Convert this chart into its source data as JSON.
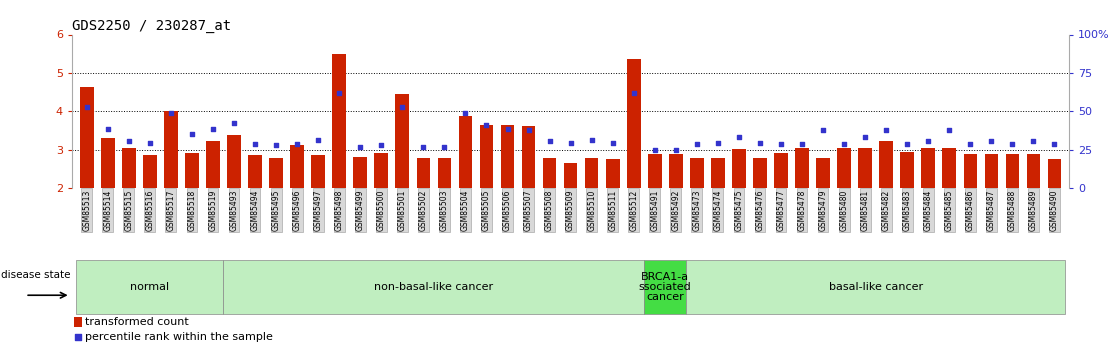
{
  "title": "GDS2250 / 230287_at",
  "samples": [
    "GSM85513",
    "GSM85514",
    "GSM85515",
    "GSM85516",
    "GSM85517",
    "GSM85518",
    "GSM85519",
    "GSM85493",
    "GSM85494",
    "GSM85495",
    "GSM85496",
    "GSM85497",
    "GSM85498",
    "GSM85499",
    "GSM85500",
    "GSM85501",
    "GSM85502",
    "GSM85503",
    "GSM85504",
    "GSM85505",
    "GSM85506",
    "GSM85507",
    "GSM85508",
    "GSM85509",
    "GSM85510",
    "GSM85511",
    "GSM85512",
    "GSM85491",
    "GSM85492",
    "GSM85473",
    "GSM85474",
    "GSM85475",
    "GSM85476",
    "GSM85477",
    "GSM85478",
    "GSM85479",
    "GSM85480",
    "GSM85481",
    "GSM85482",
    "GSM85483",
    "GSM85484",
    "GSM85485",
    "GSM85486",
    "GSM85487",
    "GSM85488",
    "GSM85489",
    "GSM85490"
  ],
  "bar_values": [
    4.62,
    3.3,
    3.05,
    2.85,
    4.0,
    2.9,
    3.22,
    3.38,
    2.87,
    2.78,
    3.13,
    2.87,
    5.48,
    2.82,
    2.92,
    4.45,
    2.78,
    2.78,
    3.88,
    3.65,
    3.65,
    3.62,
    2.78,
    2.65,
    2.78,
    2.75,
    5.35,
    2.88,
    2.88,
    2.78,
    2.78,
    3.02,
    2.78,
    2.92,
    3.05,
    2.78,
    3.05,
    3.05,
    3.22,
    2.95,
    3.05,
    3.05,
    2.88,
    2.88,
    2.88,
    2.88,
    2.75
  ],
  "blue_values": [
    4.1,
    3.55,
    3.22,
    3.18,
    3.95,
    3.42,
    3.55,
    3.7,
    3.15,
    3.12,
    3.15,
    3.25,
    4.48,
    3.08,
    3.12,
    4.12,
    3.08,
    3.08,
    3.95,
    3.65,
    3.55,
    3.52,
    3.22,
    3.18,
    3.25,
    3.18,
    4.48,
    2.98,
    2.98,
    3.15,
    3.18,
    3.32,
    3.18,
    3.15,
    3.15,
    3.52,
    3.15,
    3.32,
    3.52,
    3.15,
    3.22,
    3.52,
    3.15,
    3.22,
    3.15,
    3.22,
    3.15
  ],
  "groups": [
    {
      "label": "normal",
      "start": 0,
      "end": 6,
      "color": "#c8f0c8"
    },
    {
      "label": "non-basal-like cancer",
      "start": 7,
      "end": 26,
      "color": "#c8f0c8"
    },
    {
      "label": "BRCA1-a\nssociated\ncancer",
      "start": 27,
      "end": 28,
      "color": "#44dd44"
    },
    {
      "label": "basal-like cancer",
      "start": 29,
      "end": 46,
      "color": "#c8f0c8"
    }
  ],
  "ylim": [
    2.0,
    6.0
  ],
  "yticks_left": [
    2,
    3,
    4,
    5,
    6
  ],
  "yticks_right_pct": [
    0,
    25,
    50,
    75,
    100
  ],
  "hgrid_at": [
    3,
    4,
    5
  ],
  "bar_color": "#cc2200",
  "dot_color": "#3333cc",
  "title_fontsize": 10,
  "tick_label_fontsize": 5.5,
  "group_label_fontsize": 8,
  "legend_fontsize": 8,
  "left_tick_color": "#cc2200",
  "right_tick_color": "#3333cc",
  "disease_state_label": "disease state",
  "legend_items": [
    "transformed count",
    "percentile rank within the sample"
  ]
}
